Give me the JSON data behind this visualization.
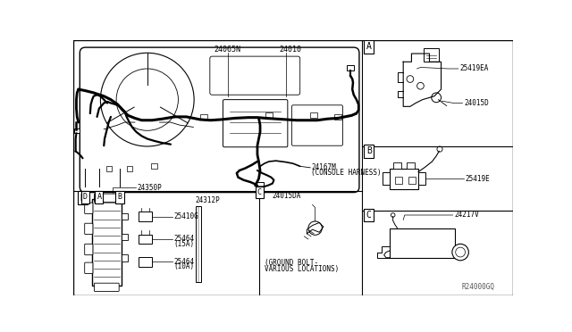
{
  "bg_color": "#ffffff",
  "line_color": "#000000",
  "gray_color": "#888888",
  "labels": {
    "main_harness": "24010",
    "harness2": "24065N",
    "console_harness_num": "24167M",
    "console_harness_text": "(CONSOLE HARNESS)",
    "part_25419EA": "25419EA",
    "part_24015D": "24015D",
    "part_25419E": "25419E",
    "part_24217V": "24217V",
    "part_24350P": "24350P",
    "part_24312P": "24312P",
    "part_25410G": "25410G",
    "part_25464_15A": "25464\n(15A)",
    "part_25464_10A": "25464\n(10A)",
    "part_24015DA": "24015DA",
    "ground_bolt_1": "(GROUND BOLT-",
    "ground_bolt_2": "VARIOUS LOCATIONS)",
    "ref_num": "R24000GQ"
  },
  "layout": {
    "vx": 0.658,
    "hy_main": 0.385,
    "hy_AB": 0.615,
    "hy_BC": 0.385
  }
}
